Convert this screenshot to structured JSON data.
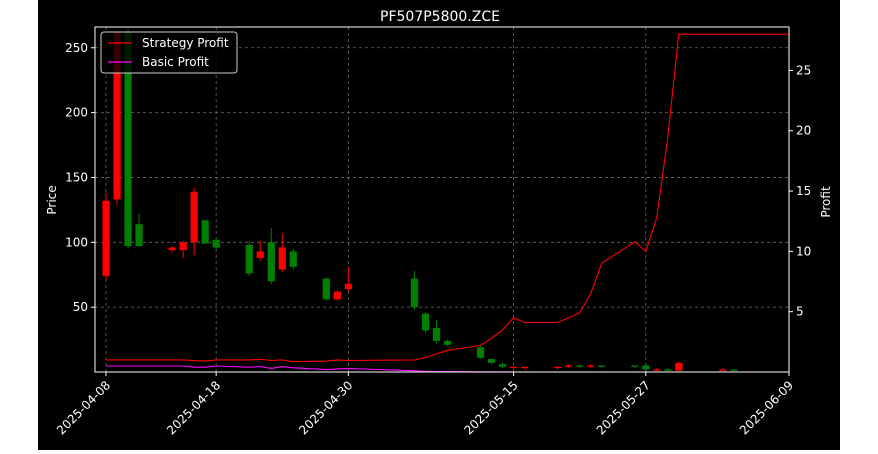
{
  "chart_data": {
    "type": "candlestick",
    "title": "PF507P5800.ZCE",
    "ylabel_left": "Price",
    "ylabel_right": "Profit",
    "xlabel": "",
    "x_range": [
      "2025-04-07",
      "2025-06-09"
    ],
    "ylim_left": [
      0,
      266
    ],
    "ylim_right": [
      0,
      28.6
    ],
    "yticks_left": [
      50,
      100,
      150,
      200,
      250
    ],
    "yticks_right": [
      5,
      10,
      15,
      20,
      25
    ],
    "xticks": [
      "2025-04-08",
      "2025-04-18",
      "2025-04-30",
      "2025-05-15",
      "2025-05-27",
      "2025-06-09"
    ],
    "grid": true,
    "legend_position": "top-left",
    "colors": {
      "up": "#ff0000",
      "down": "#008000",
      "strategy": "#ff0000",
      "basic": "#ff00ff",
      "grid": "#808080",
      "background": "#000000"
    },
    "candles": [
      {
        "date": "2025-04-08",
        "open": 74,
        "high": 138,
        "low": 71,
        "close": 132
      },
      {
        "date": "2025-04-09",
        "open": 133,
        "high": 262,
        "low": 129,
        "close": 262
      },
      {
        "date": "2025-04-10",
        "open": 262,
        "high": 264,
        "low": 95,
        "close": 97
      },
      {
        "date": "2025-04-11",
        "open": 114,
        "high": 122,
        "low": 97,
        "close": 97
      },
      {
        "date": "2025-04-14",
        "open": 94,
        "high": 97,
        "low": 92,
        "close": 96
      },
      {
        "date": "2025-04-15",
        "open": 94,
        "high": 101,
        "low": 88,
        "close": 100
      },
      {
        "date": "2025-04-16",
        "open": 100,
        "high": 142,
        "low": 90,
        "close": 139
      },
      {
        "date": "2025-04-17",
        "open": 117,
        "high": 117,
        "low": 99,
        "close": 99
      },
      {
        "date": "2025-04-18",
        "open": 102,
        "high": 104,
        "low": 94,
        "close": 96
      },
      {
        "date": "2025-04-21",
        "open": 98,
        "high": 101,
        "low": 74,
        "close": 76
      },
      {
        "date": "2025-04-22",
        "open": 88,
        "high": 101,
        "low": 86,
        "close": 93
      },
      {
        "date": "2025-04-23",
        "open": 100,
        "high": 111,
        "low": 68,
        "close": 70
      },
      {
        "date": "2025-04-24",
        "open": 79,
        "high": 107,
        "low": 77,
        "close": 96
      },
      {
        "date": "2025-04-25",
        "open": 93,
        "high": 95,
        "low": 79,
        "close": 81
      },
      {
        "date": "2025-04-28",
        "open": 72,
        "high": 73,
        "low": 55,
        "close": 56
      },
      {
        "date": "2025-04-29",
        "open": 56,
        "high": 63,
        "low": 55,
        "close": 62
      },
      {
        "date": "2025-04-30",
        "open": 64,
        "high": 81,
        "low": 62,
        "close": 68
      },
      {
        "date": "2025-05-06",
        "open": 72,
        "high": 78,
        "low": 48,
        "close": 50
      },
      {
        "date": "2025-05-07",
        "open": 45,
        "high": 46,
        "low": 30,
        "close": 32
      },
      {
        "date": "2025-05-08",
        "open": 34,
        "high": 40,
        "low": 22,
        "close": 24
      },
      {
        "date": "2025-05-09",
        "open": 24,
        "high": 25,
        "low": 20,
        "close": 21
      },
      {
        "date": "2025-05-12",
        "open": 19,
        "high": 21,
        "low": 10,
        "close": 11
      },
      {
        "date": "2025-05-13",
        "open": 10,
        "high": 10,
        "low": 6,
        "close": 7
      },
      {
        "date": "2025-05-14",
        "open": 6,
        "high": 7,
        "low": 3,
        "close": 4
      },
      {
        "date": "2025-05-15",
        "open": 3,
        "high": 4,
        "low": 2,
        "close": 4
      },
      {
        "date": "2025-05-16",
        "open": 3,
        "high": 4,
        "low": 2,
        "close": 4
      },
      {
        "date": "2025-05-19",
        "open": 3,
        "high": 4,
        "low": 2,
        "close": 4
      },
      {
        "date": "2025-05-20",
        "open": 4,
        "high": 6,
        "low": 3,
        "close": 5
      },
      {
        "date": "2025-05-21",
        "open": 5,
        "high": 6,
        "low": 3,
        "close": 4
      },
      {
        "date": "2025-05-22",
        "open": 4,
        "high": 6,
        "low": 3,
        "close": 5
      },
      {
        "date": "2025-05-23",
        "open": 5,
        "high": 5,
        "low": 3,
        "close": 4
      },
      {
        "date": "2025-05-26",
        "open": 5,
        "high": 5,
        "low": 3,
        "close": 4
      },
      {
        "date": "2025-05-27",
        "open": 5,
        "high": 6,
        "low": 1,
        "close": 2
      },
      {
        "date": "2025-05-28",
        "open": 1,
        "high": 3,
        "low": 1,
        "close": 2
      },
      {
        "date": "2025-05-29",
        "open": 2,
        "high": 3,
        "low": 1,
        "close": 1
      },
      {
        "date": "2025-05-30",
        "open": 1,
        "high": 8,
        "low": 1,
        "close": 7
      },
      {
        "date": "2025-06-03",
        "open": 1,
        "high": 3,
        "low": 1,
        "close": 2
      },
      {
        "date": "2025-06-04",
        "open": 2,
        "high": 2,
        "low": 1,
        "close": 1
      }
    ],
    "series": [
      {
        "name": "Strategy Profit",
        "color": "#ff0000",
        "points": [
          [
            "2025-04-08",
            1.0
          ],
          [
            "2025-04-11",
            1.0
          ],
          [
            "2025-04-15",
            1.0
          ],
          [
            "2025-04-17",
            0.9
          ],
          [
            "2025-04-18",
            1.0
          ],
          [
            "2025-04-21",
            1.0
          ],
          [
            "2025-04-22",
            1.05
          ],
          [
            "2025-04-23",
            0.95
          ],
          [
            "2025-04-24",
            1.0
          ],
          [
            "2025-04-25",
            0.85
          ],
          [
            "2025-04-28",
            0.9
          ],
          [
            "2025-04-29",
            1.0
          ],
          [
            "2025-04-30",
            0.95
          ],
          [
            "2025-05-06",
            1.0
          ],
          [
            "2025-05-07",
            1.2
          ],
          [
            "2025-05-08",
            1.5
          ],
          [
            "2025-05-09",
            1.8
          ],
          [
            "2025-05-12",
            2.2
          ],
          [
            "2025-05-13",
            2.8
          ],
          [
            "2025-05-14",
            3.5
          ],
          [
            "2025-05-15",
            4.5
          ],
          [
            "2025-05-16",
            4.1
          ],
          [
            "2025-05-19",
            4.1
          ],
          [
            "2025-05-20",
            4.5
          ],
          [
            "2025-05-21",
            4.9
          ],
          [
            "2025-05-22",
            6.5
          ],
          [
            "2025-05-23",
            9.0
          ],
          [
            "2025-05-26",
            10.8
          ],
          [
            "2025-05-27",
            10.0
          ],
          [
            "2025-05-28",
            12.8
          ],
          [
            "2025-05-29",
            19.5
          ],
          [
            "2025-05-30",
            28.0
          ],
          [
            "2025-06-09",
            28.0
          ]
        ]
      },
      {
        "name": "Basic Profit",
        "color": "#ff00ff",
        "points": [
          [
            "2025-04-08",
            0.5
          ],
          [
            "2025-04-11",
            0.5
          ],
          [
            "2025-04-15",
            0.5
          ],
          [
            "2025-04-16",
            0.4
          ],
          [
            "2025-04-17",
            0.4
          ],
          [
            "2025-04-18",
            0.5
          ],
          [
            "2025-04-21",
            0.4
          ],
          [
            "2025-04-22",
            0.45
          ],
          [
            "2025-04-23",
            0.3
          ],
          [
            "2025-04-24",
            0.45
          ],
          [
            "2025-04-25",
            0.35
          ],
          [
            "2025-04-28",
            0.2
          ],
          [
            "2025-04-30",
            0.3
          ],
          [
            "2025-05-06",
            0.1
          ],
          [
            "2025-05-07",
            0.05
          ],
          [
            "2025-05-12",
            0.02
          ],
          [
            "2025-05-15",
            0.0
          ],
          [
            "2025-06-09",
            0.0
          ]
        ]
      }
    ]
  }
}
